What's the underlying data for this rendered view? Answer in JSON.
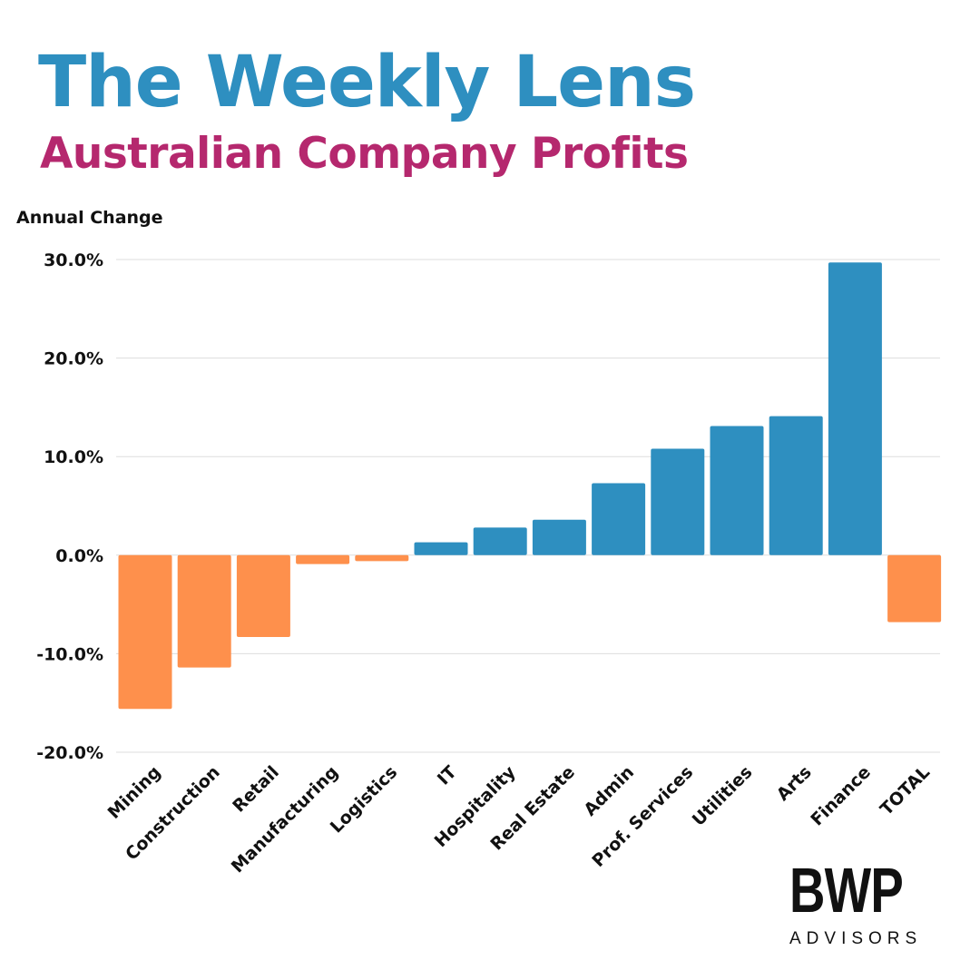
{
  "header": {
    "title": "The Weekly Lens",
    "subtitle": "Australian Company Profits"
  },
  "brand": {
    "name": "BWP",
    "tagline": "ADVISORS"
  },
  "colors": {
    "title": "#2e8fc0",
    "subtitle": "#b5286e",
    "positive_bar": "#2e8fc0",
    "negative_bar": "#fe904c",
    "grid": "#dddddd",
    "text": "#111111"
  },
  "chart_data": {
    "type": "bar",
    "ylabel": "Annual Change",
    "xlabel": "",
    "ylim": [
      -20,
      30
    ],
    "yticks": [
      30,
      20,
      10,
      0,
      -10,
      -20
    ],
    "ytick_labels": [
      "30.0%",
      "20.0%",
      "10.0%",
      "0.0%",
      "-10.0%",
      "-20.0%"
    ],
    "grid": true,
    "categories": [
      "Mining",
      "Construction",
      "Retail",
      "Manufacturing",
      "Logistics",
      "IT",
      "Hospitality",
      "Real Estate",
      "Admin",
      "Prof. Services",
      "Utilities",
      "Arts",
      "Finance",
      "TOTAL"
    ],
    "values": [
      -15.6,
      -11.4,
      -8.3,
      -0.9,
      -0.6,
      1.3,
      2.8,
      3.6,
      7.3,
      10.8,
      13.1,
      14.1,
      29.7,
      -6.8
    ],
    "bar_colors": "positive blue, negative orange"
  }
}
